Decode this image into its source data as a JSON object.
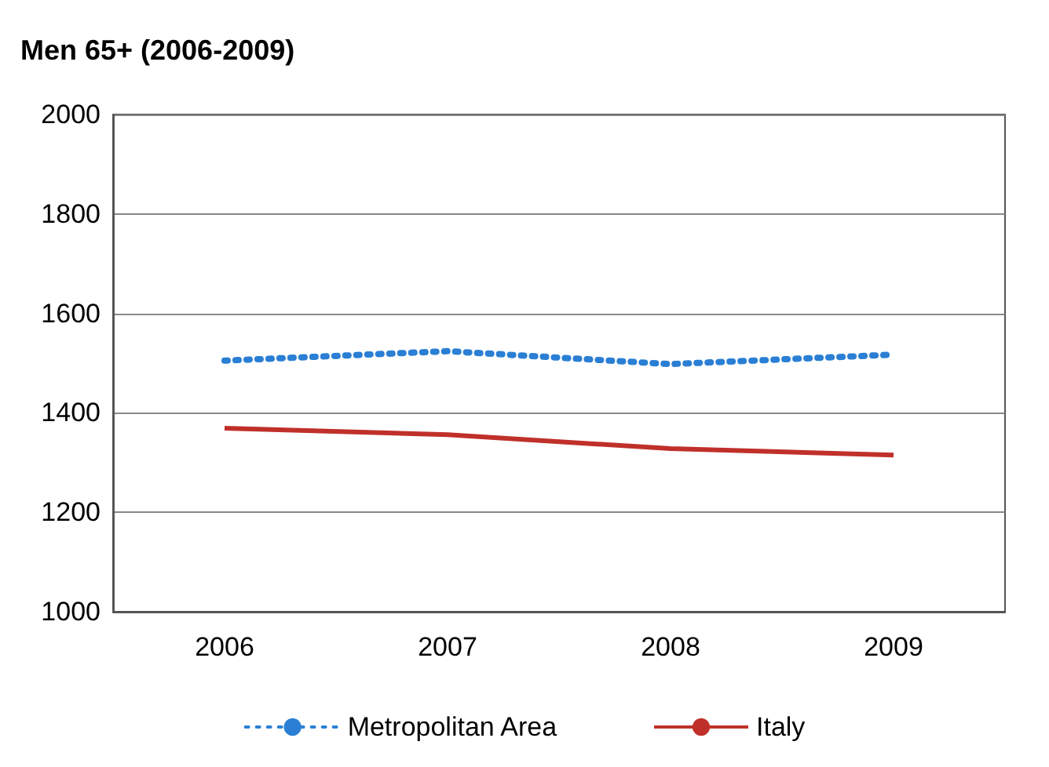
{
  "chart_data": {
    "type": "line",
    "title": "Men 65+ (2006-2009)",
    "categories": [
      "2006",
      "2007",
      "2008",
      "2009"
    ],
    "series": [
      {
        "name": "Metropolitan Area",
        "color": "#2a7fd4",
        "values": [
          1505,
          1524,
          1498,
          1517
        ],
        "line_style": "dotted"
      },
      {
        "name": "Italy",
        "color": "#c0302a",
        "values": [
          1369,
          1356,
          1328,
          1315
        ],
        "line_style": "solid"
      }
    ],
    "ylim": [
      1000,
      2000
    ],
    "yticks": [
      1000,
      1200,
      1400,
      1600,
      1800,
      2000
    ],
    "grid": "y",
    "legend": "bottom",
    "marker": "none"
  }
}
